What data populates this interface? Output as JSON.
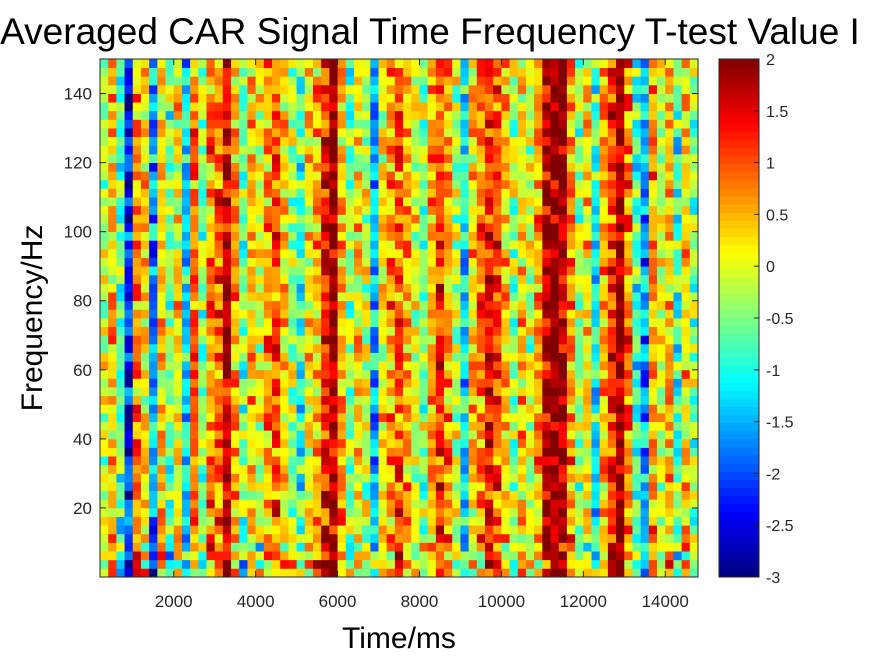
{
  "chart_data": {
    "type": "heatmap",
    "title": "Averaged CAR Signal Time Frequency T-test Value I",
    "xlabel": "Time/ms",
    "ylabel": "Frequency/Hz",
    "xlim": [
      200,
      14800
    ],
    "ylim": [
      0,
      150
    ],
    "xticks": [
      2000,
      4000,
      6000,
      8000,
      10000,
      12000,
      14000
    ],
    "yticks": [
      20,
      40,
      60,
      80,
      100,
      120,
      140
    ],
    "colorbar": {
      "colormap": "jet",
      "clim": [
        -3,
        2
      ],
      "ticks": [
        "2",
        "1.5",
        "1",
        "0.5",
        "0",
        "-0.5",
        "-1",
        "-1.5",
        "-2",
        "-2.5",
        "-3"
      ]
    },
    "column_profile": [
      {
        "x": 300,
        "value": -0.2
      },
      {
        "x": 500,
        "value": 0.4
      },
      {
        "x": 700,
        "value": -0.8
      },
      {
        "x": 900,
        "value": -2.2
      },
      {
        "x": 1100,
        "value": 0.6
      },
      {
        "x": 1300,
        "value": 0.2
      },
      {
        "x": 1500,
        "value": -1.6
      },
      {
        "x": 1700,
        "value": 0.3
      },
      {
        "x": 1900,
        "value": -0.6
      },
      {
        "x": 2100,
        "value": 0.2
      },
      {
        "x": 2300,
        "value": -1.3
      },
      {
        "x": 2500,
        "value": 0.8
      },
      {
        "x": 2700,
        "value": -0.4
      },
      {
        "x": 2900,
        "value": 0.7
      },
      {
        "x": 3100,
        "value": 0.9
      },
      {
        "x": 3300,
        "value": 1.6
      },
      {
        "x": 3500,
        "value": 0.5
      },
      {
        "x": 3700,
        "value": -0.6
      },
      {
        "x": 3900,
        "value": 0.3
      },
      {
        "x": 4100,
        "value": -0.1
      },
      {
        "x": 4300,
        "value": 0.6
      },
      {
        "x": 4500,
        "value": 0.9
      },
      {
        "x": 4700,
        "value": 0.4
      },
      {
        "x": 4900,
        "value": -0.3
      },
      {
        "x": 5100,
        "value": -0.9
      },
      {
        "x": 5300,
        "value": 0.1
      },
      {
        "x": 5500,
        "value": 0.4
      },
      {
        "x": 5700,
        "value": 1.3
      },
      {
        "x": 5900,
        "value": 1.8
      },
      {
        "x": 6100,
        "value": 0.5
      },
      {
        "x": 6300,
        "value": -0.5
      },
      {
        "x": 6500,
        "value": 0.3
      },
      {
        "x": 6700,
        "value": -0.2
      },
      {
        "x": 6900,
        "value": -1.4
      },
      {
        "x": 7100,
        "value": 0.2
      },
      {
        "x": 7300,
        "value": 0.6
      },
      {
        "x": 7500,
        "value": 0.9
      },
      {
        "x": 7700,
        "value": 0.4
      },
      {
        "x": 7900,
        "value": 0.0
      },
      {
        "x": 8100,
        "value": -0.4
      },
      {
        "x": 8300,
        "value": 0.5
      },
      {
        "x": 8500,
        "value": 1.1
      },
      {
        "x": 8700,
        "value": 0.6
      },
      {
        "x": 8900,
        "value": -0.2
      },
      {
        "x": 9100,
        "value": -1.2
      },
      {
        "x": 9300,
        "value": 0.3
      },
      {
        "x": 9500,
        "value": 0.8
      },
      {
        "x": 9700,
        "value": 1.4
      },
      {
        "x": 9900,
        "value": 1.0
      },
      {
        "x": 10100,
        "value": 0.4
      },
      {
        "x": 10300,
        "value": -0.3
      },
      {
        "x": 10500,
        "value": 0.3
      },
      {
        "x": 10700,
        "value": -0.2
      },
      {
        "x": 10900,
        "value": 0.5
      },
      {
        "x": 11100,
        "value": 1.7
      },
      {
        "x": 11300,
        "value": 2.0
      },
      {
        "x": 11500,
        "value": 1.8
      },
      {
        "x": 11700,
        "value": 0.7
      },
      {
        "x": 11900,
        "value": -0.4
      },
      {
        "x": 12100,
        "value": 0.2
      },
      {
        "x": 12300,
        "value": -1.0
      },
      {
        "x": 12500,
        "value": 0.4
      },
      {
        "x": 12700,
        "value": 1.2
      },
      {
        "x": 12900,
        "value": 2.0
      },
      {
        "x": 13100,
        "value": 0.8
      },
      {
        "x": 13300,
        "value": -0.9
      },
      {
        "x": 13500,
        "value": -1.6
      },
      {
        "x": 13700,
        "value": 0.6
      },
      {
        "x": 13900,
        "value": -0.1
      },
      {
        "x": 14100,
        "value": 0.4
      },
      {
        "x": 14300,
        "value": -0.8
      },
      {
        "x": 14500,
        "value": 0.3
      },
      {
        "x": 14700,
        "value": -0.4
      }
    ]
  }
}
